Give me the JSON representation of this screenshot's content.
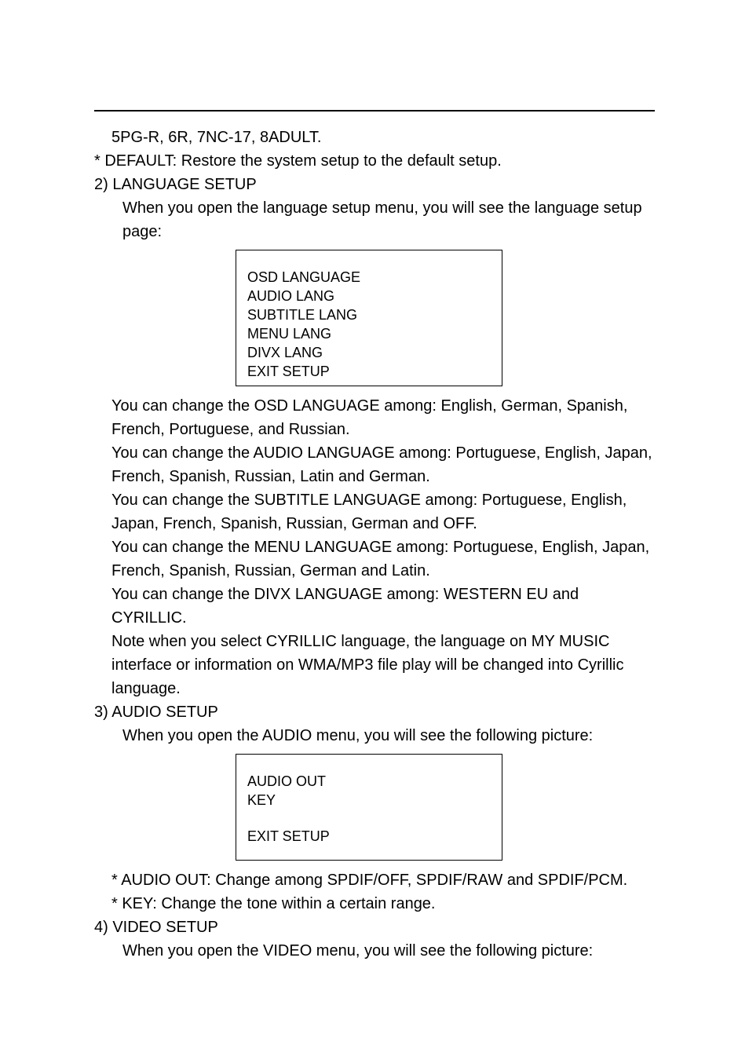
{
  "line1": "5PG-R, 6R, 7NC-17, 8ADULT.",
  "line2": "* DEFAULT: Restore the system setup to the default setup.",
  "heading_lang": "2) LANGUAGE SETUP",
  "lang_intro1": "When you open the language setup menu, you will see the language setup",
  "lang_intro2": "page:",
  "lang_menu": {
    "item1": "OSD LANGUAGE",
    "item2": "AUDIO LANG",
    "item3": "SUBTITLE LANG",
    "item4": "MENU LANG",
    "item5": "DIVX LANG",
    "item6": "EXIT SETUP"
  },
  "para_osd1": "You can change the OSD LANGUAGE among: English, German, Spanish,",
  "para_osd2": "French, Portuguese, and Russian.",
  "para_audio_lang1": "You can change the AUDIO LANGUAGE among: Portuguese, English, Japan,",
  "para_audio_lang2": "French, Spanish, Russian, Latin and German.",
  "para_sub1": "You can change the SUBTITLE LANGUAGE among: Portuguese, English,",
  "para_sub2": "Japan, French, Spanish, Russian, German and OFF.",
  "para_menu1": "You can change the MENU LANGUAGE among: Portuguese, English, Japan,",
  "para_menu2": "French, Spanish, Russian, German and Latin.",
  "para_divx": "You can change the DIVX LANGUAGE among: WESTERN EU and CYRILLIC.",
  "para_note1": "Note when you select CYRILLIC language, the language on MY MUSIC",
  "para_note2": "interface or information on WMA/MP3 file play will be changed into Cyrillic",
  "para_note3": "language.",
  "heading_audio": "3) AUDIO SETUP",
  "audio_intro": "When you open the AUDIO menu, you will see the following picture:",
  "audio_menu": {
    "item1": "AUDIO OUT",
    "item2": "KEY",
    "item3": "EXIT SETUP"
  },
  "audio_out": "* AUDIO OUT: Change among SPDIF/OFF, SPDIF/RAW and SPDIF/PCM.",
  "audio_key": "* KEY: Change the tone within a certain range.",
  "heading_video": "4) VIDEO SETUP",
  "video_intro": "When you open the VIDEO menu, you will see the following picture:"
}
